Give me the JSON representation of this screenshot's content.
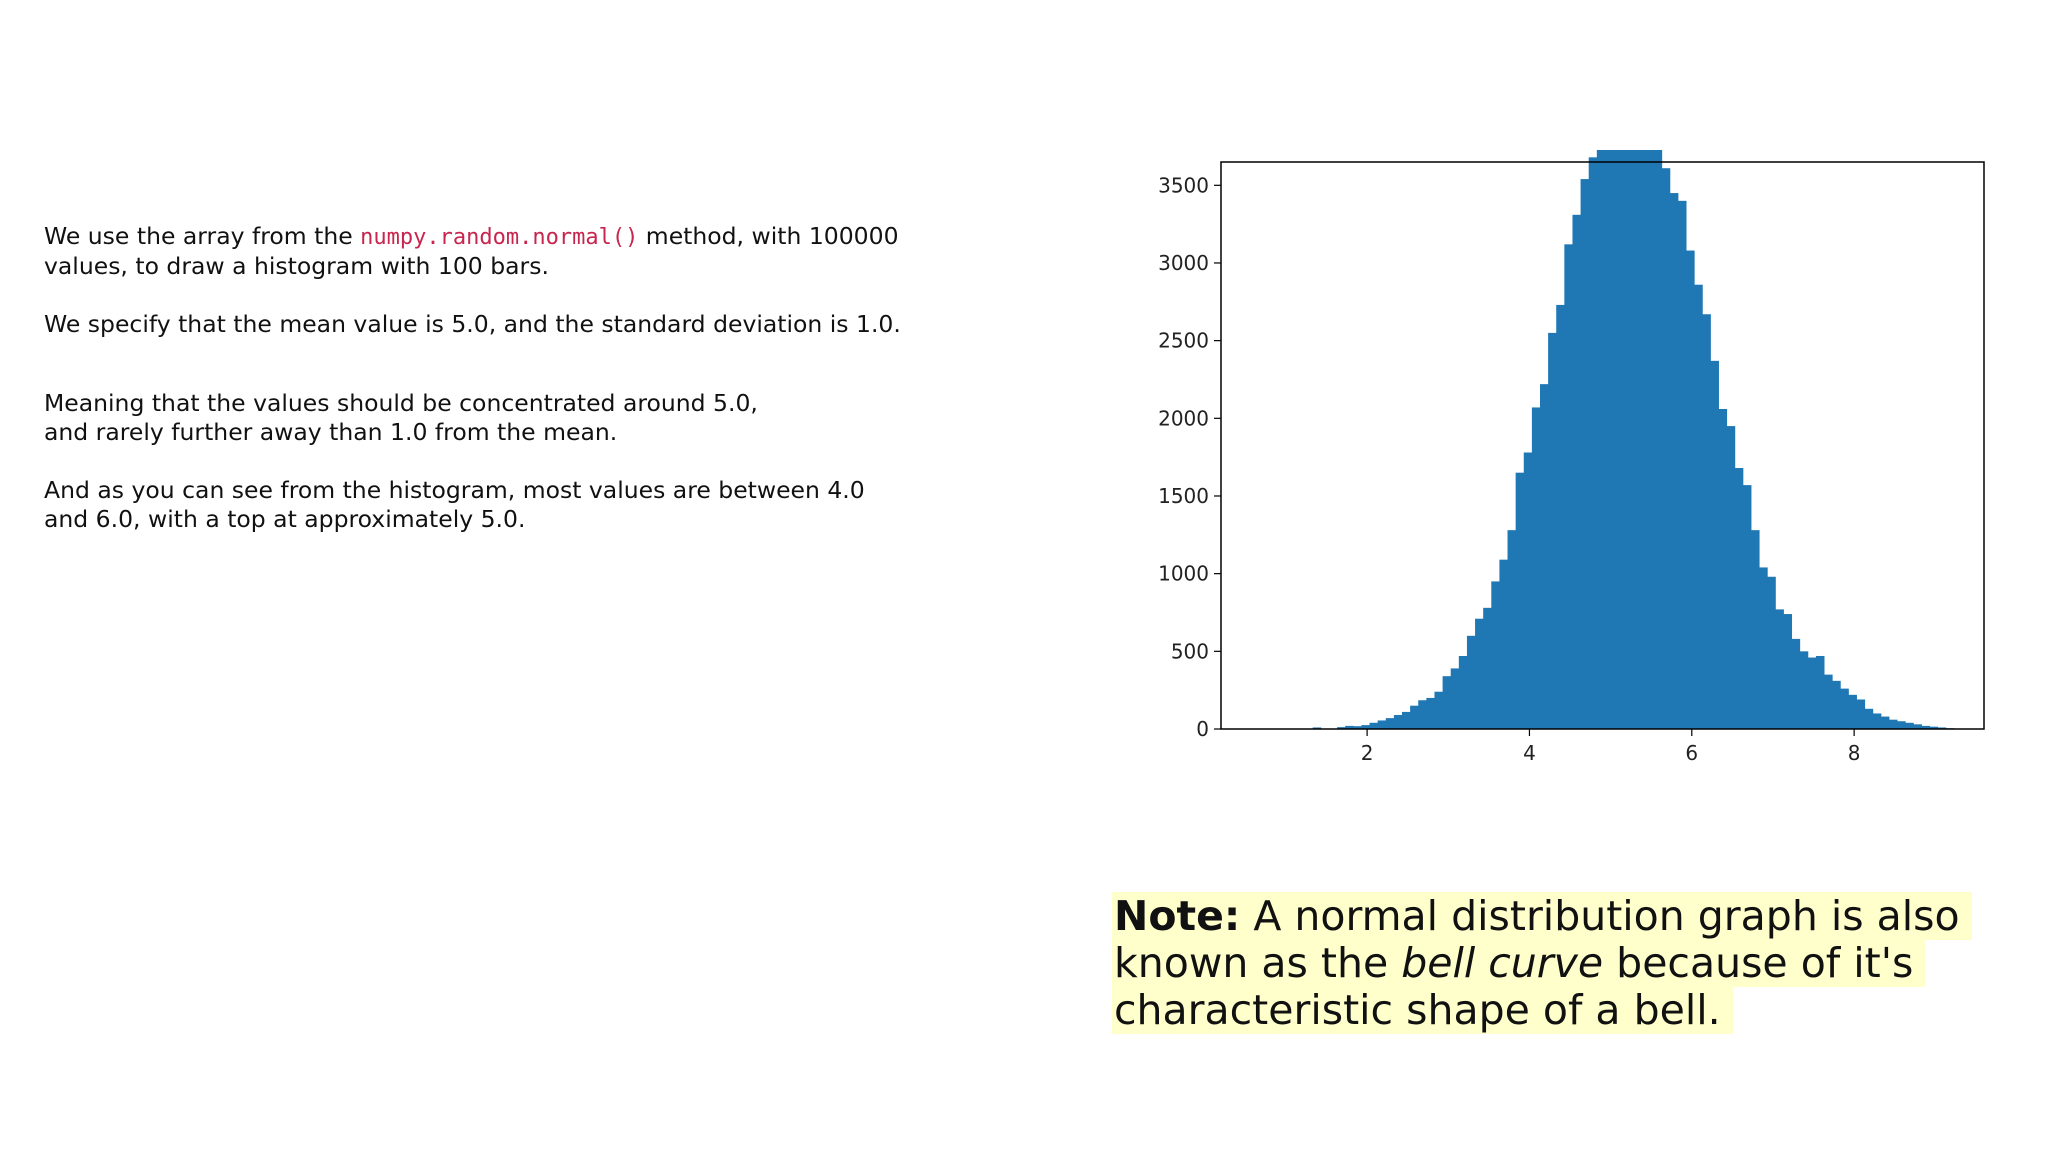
{
  "explanation": {
    "p1_before": "We use the array from the ",
    "p1_code": "numpy.random.normal()",
    "p1_after_line1": " method, with 100000",
    "p1_line2": "values,  to draw a histogram with 100 bars.",
    "p2": "We specify that the mean value is 5.0, and the standard deviation is 1.0.",
    "p3_line1": "Meaning that the values should be concentrated around 5.0,",
    "p3_line2": "and rarely further away than 1.0 from the mean.",
    "p4_line1": "And as you can see from the histogram, most values are between 4.0",
    "p4_line2": "and 6.0, with a top at approximately 5.0."
  },
  "note": {
    "bold": "Note:",
    "line1_rest": " A normal distribution graph is also",
    "line2_before": "known as the ",
    "line2_italic": "bell curve",
    "line2_after": " because of it's",
    "line3": "characteristic shape of a bell."
  },
  "chart_data": {
    "type": "bar",
    "histogram": true,
    "bar_color": "#1f77b4",
    "xlim": [
      0.2,
      9.6
    ],
    "ylim": [
      0,
      3650
    ],
    "xticks": [
      2,
      4,
      6,
      8
    ],
    "yticks": [
      0,
      500,
      1000,
      1500,
      2000,
      2500,
      3000,
      3500
    ],
    "grid": false,
    "bin_start": 1.33,
    "bin_width": 0.1,
    "values": [
      10,
      0,
      0,
      12,
      20,
      18,
      25,
      40,
      55,
      70,
      90,
      110,
      150,
      185,
      200,
      240,
      340,
      390,
      470,
      600,
      710,
      780,
      950,
      1090,
      1280,
      1650,
      1780,
      2070,
      2220,
      2550,
      2730,
      3120,
      3310,
      3540,
      3680,
      3870,
      3880,
      3930,
      3980,
      3880,
      3920,
      3850,
      3820,
      3610,
      3450,
      3400,
      3080,
      2860,
      2670,
      2370,
      2060,
      1950,
      1680,
      1570,
      1280,
      1040,
      980,
      770,
      740,
      580,
      500,
      460,
      470,
      350,
      310,
      260,
      220,
      190,
      130,
      100,
      80,
      60,
      50,
      40,
      30,
      20,
      15,
      10,
      5
    ],
    "title": "",
    "xlabel": "",
    "ylabel": ""
  }
}
